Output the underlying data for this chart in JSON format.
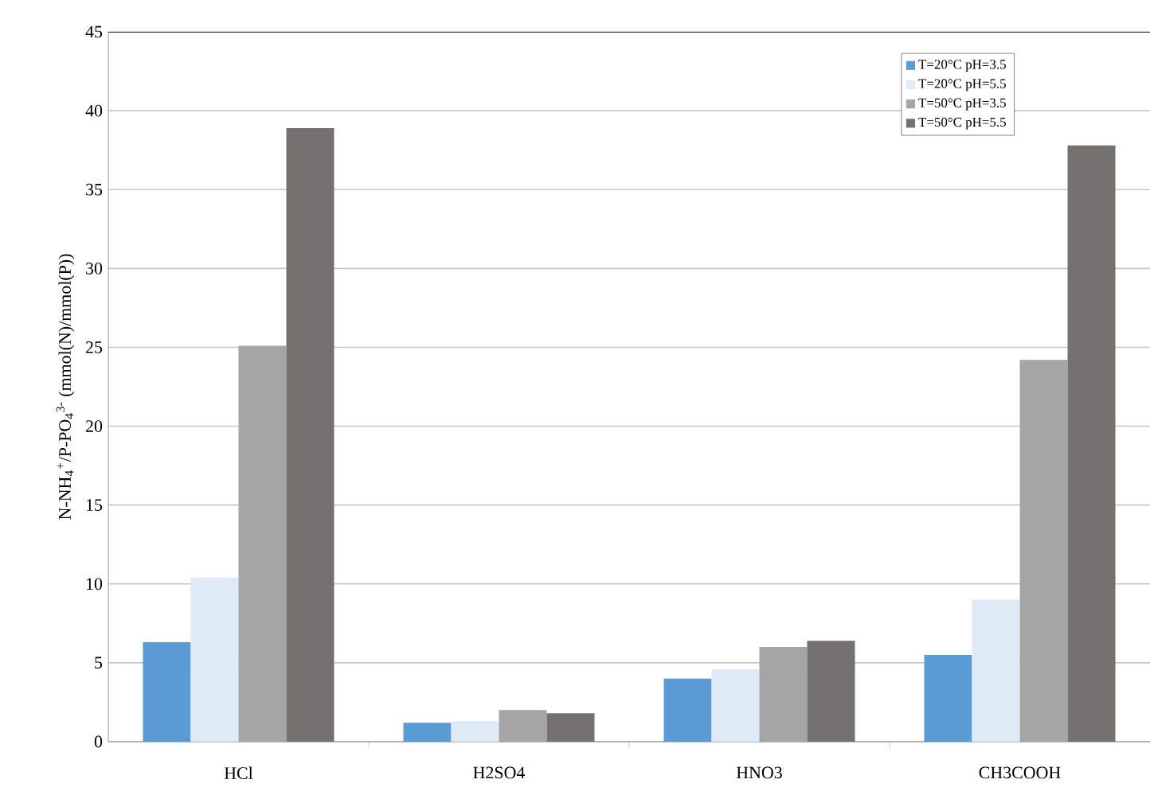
{
  "chart_data": {
    "type": "bar",
    "ylabel": "N-NH$_{4}$$^{+}$/P-PO$_{4}$$^{3-}$  (mmol(N)/mmol(P))",
    "categories": [
      "HCl",
      "H2SO4",
      "HNO3",
      "CH3COOH"
    ],
    "series": [
      {
        "name": "T=20°C pH=3.5",
        "color": "#5b9bd5",
        "values": [
          6.3,
          1.2,
          4.0,
          5.5
        ]
      },
      {
        "name": "T=20°C pH=5.5",
        "color": "#deebf7",
        "values": [
          10.4,
          1.3,
          4.6,
          9.0
        ]
      },
      {
        "name": "T=50°C pH=3.5",
        "color": "#a5a5a5",
        "values": [
          25.1,
          2.0,
          6.0,
          24.2
        ]
      },
      {
        "name": "T=50°C pH=5.5",
        "color": "#767171",
        "values": [
          38.9,
          1.8,
          6.4,
          37.8
        ]
      }
    ],
    "ylim": [
      0,
      45
    ],
    "yticks": [
      0,
      5,
      10,
      15,
      20,
      25,
      30,
      35,
      40,
      45
    ],
    "grid": "y",
    "legend": "top right"
  }
}
